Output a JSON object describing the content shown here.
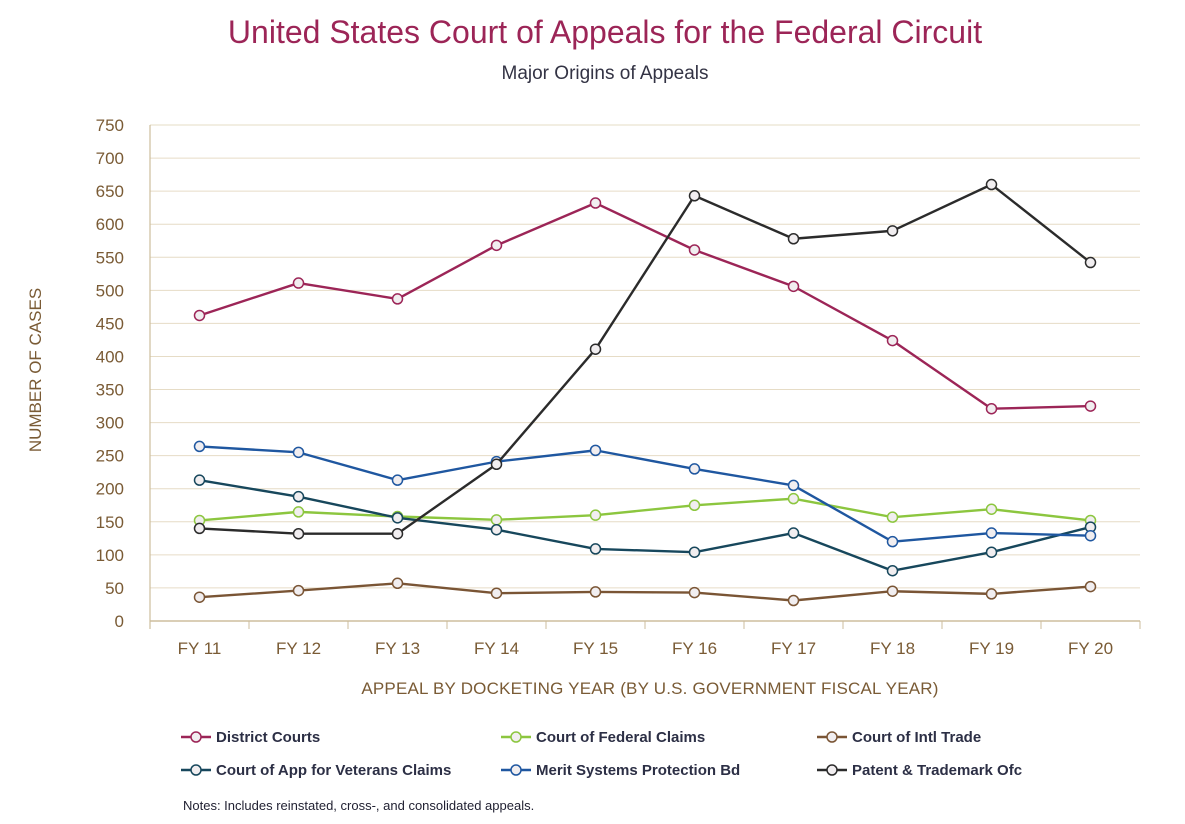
{
  "chart_data": {
    "type": "line",
    "title": "United States Court of Appeals for the Federal Circuit",
    "subtitle": "Major Origins of Appeals",
    "xlabel": "APPEAL BY DOCKETING YEAR (BY U.S. GOVERNMENT FISCAL YEAR)",
    "ylabel": "NUMBER OF CASES",
    "ylim": [
      0,
      750
    ],
    "yticks": [
      "0",
      "50",
      "100",
      "150",
      "200",
      "250",
      "300",
      "350",
      "400",
      "450",
      "500",
      "550",
      "600",
      "650",
      "700",
      "750"
    ],
    "grid": true,
    "categories": [
      "FY 11",
      "FY 12",
      "FY 13",
      "FY 14",
      "FY 15",
      "FY 16",
      "FY 17",
      "FY 18",
      "FY 19",
      "FY 20"
    ],
    "series": [
      {
        "name": "District Courts",
        "color": "#9c2557",
        "values": [
          462,
          511,
          487,
          568,
          632,
          561,
          506,
          424,
          321,
          325
        ]
      },
      {
        "name": "Court of Federal Claims",
        "color": "#8cc63f",
        "values": [
          152,
          165,
          158,
          153,
          160,
          175,
          185,
          157,
          169,
          152
        ]
      },
      {
        "name": "Court of Intl Trade",
        "color": "#7a5535",
        "values": [
          36,
          46,
          57,
          42,
          44,
          43,
          31,
          45,
          41,
          52
        ]
      },
      {
        "name": "Court of App for Veterans Claims",
        "color": "#17475c",
        "values": [
          213,
          188,
          156,
          138,
          109,
          104,
          133,
          76,
          104,
          142
        ]
      },
      {
        "name": "Merit Systems Protection Bd",
        "color": "#1f57a0",
        "values": [
          264,
          255,
          213,
          241,
          258,
          230,
          205,
          120,
          133,
          129
        ]
      },
      {
        "name": "Patent & Trademark Ofc",
        "color": "#2b2b2b",
        "values": [
          140,
          132,
          132,
          237,
          411,
          643,
          578,
          590,
          660,
          542
        ]
      }
    ]
  },
  "notes": "Notes: Includes reinstated, cross-, and consolidated appeals."
}
